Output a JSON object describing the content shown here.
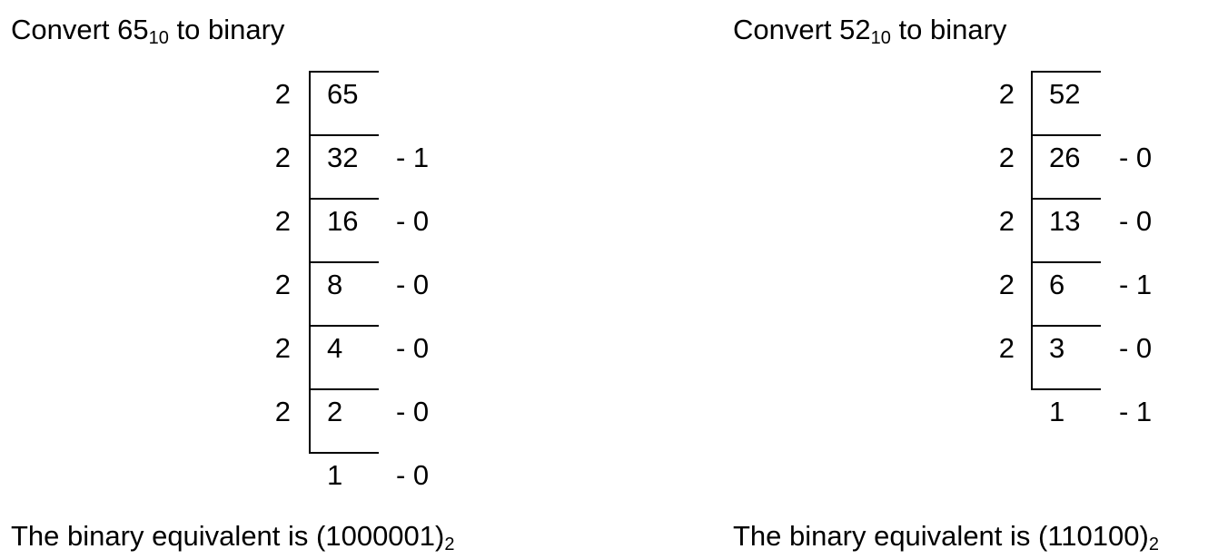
{
  "left": {
    "title": {
      "prefix": "Convert ",
      "number": "65",
      "base": "10",
      "suffix": " to binary"
    },
    "rows": [
      {
        "divisor": "2",
        "quotient": "65",
        "remainder": ""
      },
      {
        "divisor": "2",
        "quotient": "32",
        "remainder": "- 1"
      },
      {
        "divisor": "2",
        "quotient": "16",
        "remainder": "- 0"
      },
      {
        "divisor": "2",
        "quotient": "8",
        "remainder": "- 0"
      },
      {
        "divisor": "2",
        "quotient": "4",
        "remainder": "- 0"
      },
      {
        "divisor": "2",
        "quotient": "2",
        "remainder": "- 0"
      },
      {
        "divisor": "",
        "quotient": "1",
        "remainder": "- 0"
      }
    ],
    "result": {
      "prefix": "The binary equivalent is (",
      "value": "1000001",
      "close": ")",
      "base": "2"
    }
  },
  "right": {
    "title": {
      "prefix": "Convert ",
      "number": "52",
      "base": "10",
      "suffix": " to binary"
    },
    "rows": [
      {
        "divisor": "2",
        "quotient": "52",
        "remainder": ""
      },
      {
        "divisor": "2",
        "quotient": "26",
        "remainder": "- 0"
      },
      {
        "divisor": "2",
        "quotient": "13",
        "remainder": "- 0"
      },
      {
        "divisor": "2",
        "quotient": "6",
        "remainder": "- 1"
      },
      {
        "divisor": "2",
        "quotient": "3",
        "remainder": "- 0"
      },
      {
        "divisor": "",
        "quotient": "1",
        "remainder": "- 1"
      }
    ],
    "result": {
      "prefix": "The binary equivalent is (",
      "value": "110100",
      "close": ")",
      "base": "2"
    }
  }
}
